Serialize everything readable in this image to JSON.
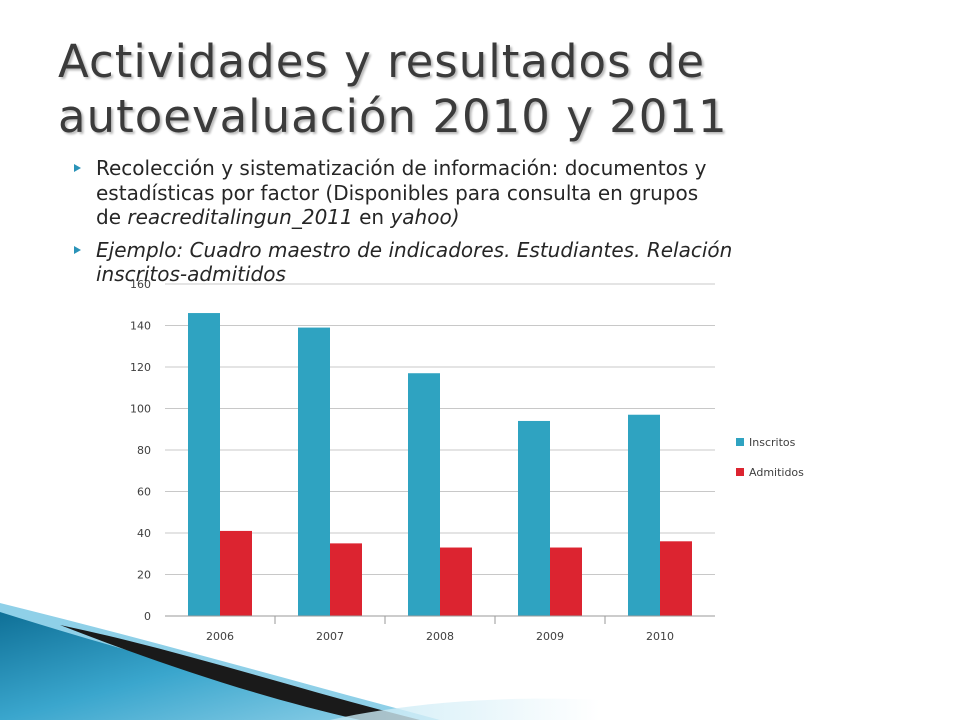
{
  "slide": {
    "title_lines": [
      "Actividades y resultados  de",
      "autoevaluación 2010 y 2011"
    ],
    "bullet1": {
      "line1": "Recolección y sistematización de información: documentos y",
      "line2": "estadísticas por factor (Disponibles para consulta en grupos",
      "line3_prefix": "de ",
      "line3_italic": "reacreditalingun_2011",
      "line3_mid": " en ",
      "line3_italic2": "yahoo)"
    },
    "bullet2": {
      "line1": "Ejemplo:  Cuadro maestro de indicadores. Estudiantes. Relación",
      "line2": "inscritos-admitidos"
    }
  },
  "chart_data": {
    "type": "bar",
    "categories": [
      "2006",
      "2007",
      "2008",
      "2009",
      "2010"
    ],
    "series": [
      {
        "name": "Inscritos",
        "values": [
          146,
          139,
          117,
          94,
          97
        ],
        "color": "#2fa3c1"
      },
      {
        "name": "Admitidos",
        "values": [
          41,
          35,
          33,
          33,
          36
        ],
        "color": "#dc2430"
      }
    ],
    "yticks": [
      0,
      20,
      40,
      60,
      80,
      100,
      120,
      140,
      160
    ],
    "ylim": [
      0,
      160
    ],
    "grid": true,
    "legend_position": "right"
  },
  "colors": {
    "accent": "#2a93b8",
    "title": "#3b3b3b",
    "text": "#262626"
  }
}
